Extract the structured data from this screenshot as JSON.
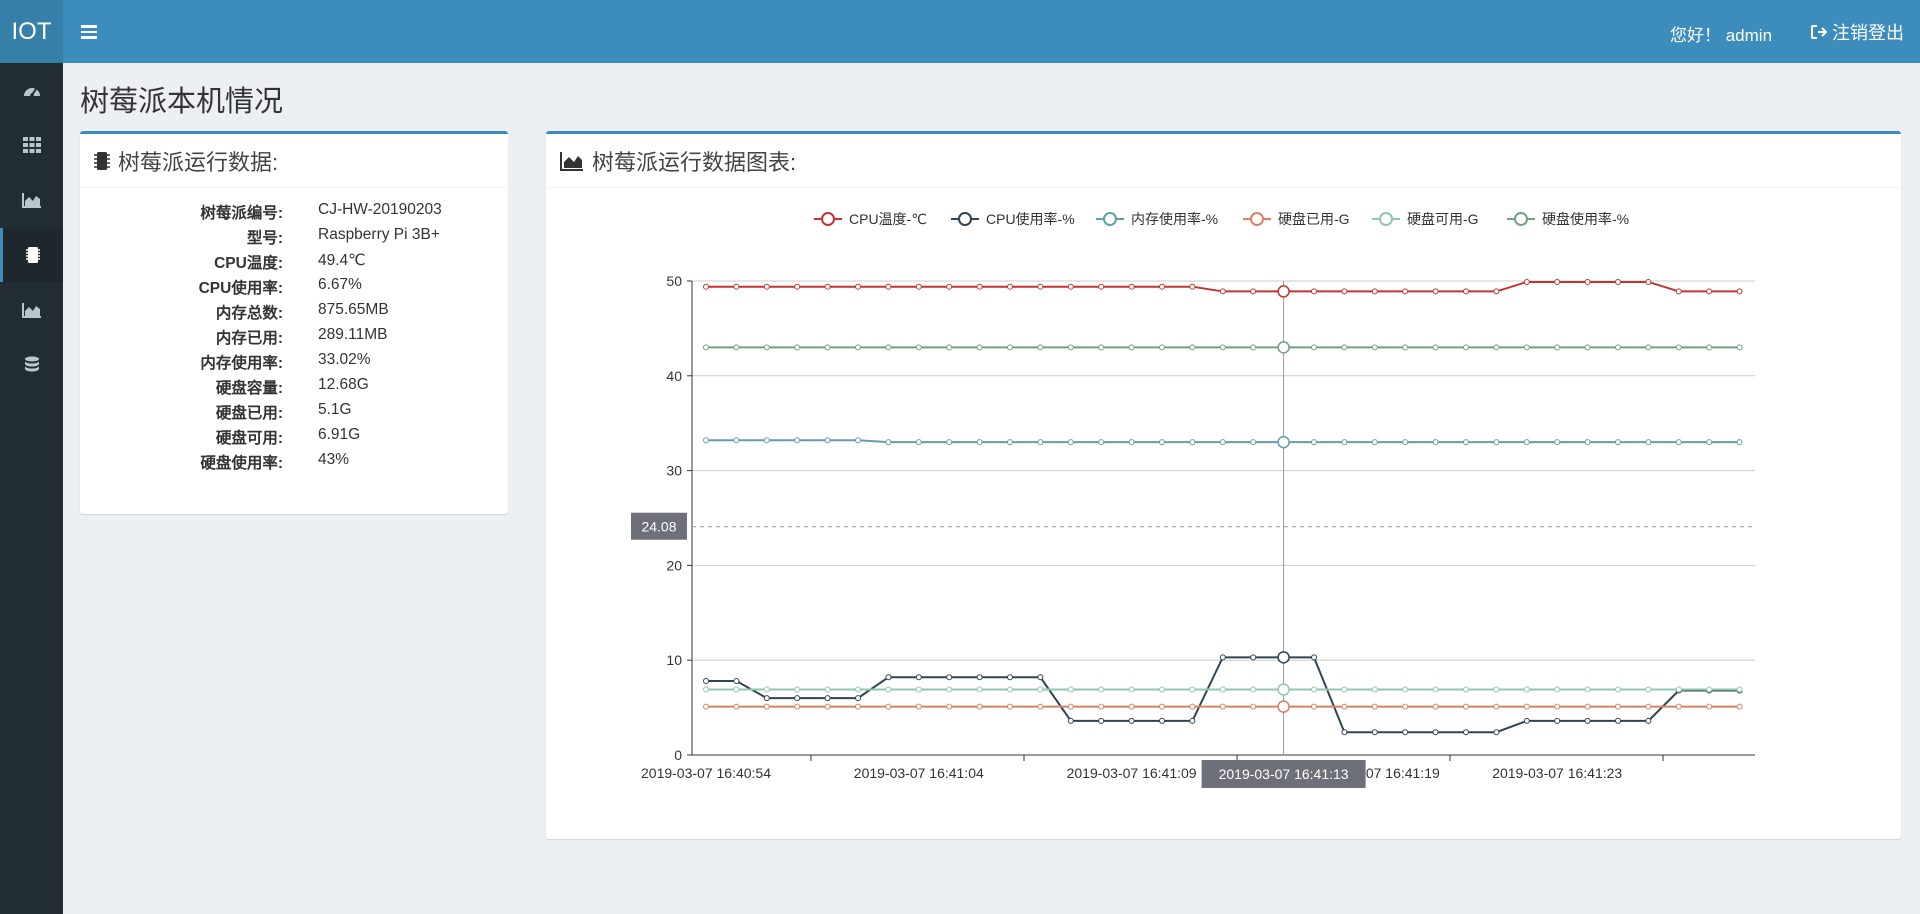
{
  "header": {
    "logo": "IOT",
    "greeting": "您好！ admin",
    "logout_label": "注销登出"
  },
  "sidebar": {
    "items": [
      {
        "icon": "dashboard-icon"
      },
      {
        "icon": "grid-icon"
      },
      {
        "icon": "area-chart-icon"
      },
      {
        "icon": "chip-icon",
        "active": true
      },
      {
        "icon": "area-chart-icon"
      },
      {
        "icon": "database-icon"
      }
    ]
  },
  "page": {
    "title": "树莓派本机情况"
  },
  "info_panel": {
    "title": "树莓派运行数据:",
    "rows": [
      {
        "label": "树莓派编号:",
        "value": "CJ-HW-20190203"
      },
      {
        "label": "型号:",
        "value": "Raspberry Pi 3B+"
      },
      {
        "label": "CPU温度:",
        "value": "49.4℃"
      },
      {
        "label": "CPU使用率:",
        "value": "6.67%"
      },
      {
        "label": "内存总数:",
        "value": "875.65MB"
      },
      {
        "label": "内存已用:",
        "value": "289.11MB"
      },
      {
        "label": "内存使用率:",
        "value": "33.02%"
      },
      {
        "label": "硬盘容量:",
        "value": "12.68G"
      },
      {
        "label": "硬盘已用:",
        "value": "5.1G"
      },
      {
        "label": "硬盘可用:",
        "value": "6.91G"
      },
      {
        "label": "硬盘使用率:",
        "value": "43%"
      }
    ]
  },
  "chart_panel": {
    "title": "树莓派运行数据图表:"
  },
  "chart_data": {
    "type": "line",
    "ylim": [
      0,
      50
    ],
    "yticks": [
      0,
      10,
      20,
      30,
      40,
      50
    ],
    "grid": true,
    "legend_position": "top-center",
    "x_tick_labels": [
      "2019-03-07 16:40:54",
      "2019-03-07 16:41:04",
      "2019-03-07 16:41:09",
      "2019-03-07 16:41:19",
      "2019-03-07 16:41:23"
    ],
    "x_tick_label_points": [
      0,
      7,
      14,
      22,
      28
    ],
    "crosshair": {
      "point_index": 19,
      "x_label": "2019-03-07 16:41:13",
      "y_label": "24.08",
      "y_value": 24.08
    },
    "points": 35,
    "series": [
      {
        "name": "CPU温度-℃",
        "color": "#c23531",
        "values": [
          49.4,
          49.4,
          49.4,
          49.4,
          49.4,
          49.4,
          49.4,
          49.4,
          49.4,
          49.4,
          49.4,
          49.4,
          49.4,
          49.4,
          49.4,
          49.4,
          49.4,
          48.9,
          48.9,
          48.9,
          48.9,
          48.9,
          48.9,
          48.9,
          48.9,
          48.9,
          48.9,
          49.9,
          49.9,
          49.9,
          49.9,
          49.9,
          48.9,
          48.9,
          48.9
        ]
      },
      {
        "name": "CPU使用率-%",
        "color": "#2f4554",
        "values": [
          7.8,
          7.8,
          6.0,
          6.0,
          6.0,
          6.0,
          8.2,
          8.2,
          8.2,
          8.2,
          8.2,
          8.2,
          3.6,
          3.6,
          3.6,
          3.6,
          3.6,
          10.3,
          10.3,
          10.3,
          10.3,
          2.4,
          2.4,
          2.4,
          2.4,
          2.4,
          2.4,
          3.6,
          3.6,
          3.6,
          3.6,
          3.6,
          6.8,
          6.8,
          6.8
        ]
      },
      {
        "name": "内存使用率-%",
        "color": "#61a0a8",
        "values": [
          33.2,
          33.2,
          33.2,
          33.2,
          33.2,
          33.2,
          33.0,
          33.0,
          33.0,
          33.0,
          33.0,
          33.0,
          33.0,
          33.0,
          33.0,
          33.0,
          33.0,
          33.0,
          33.0,
          33.0,
          33.0,
          33.0,
          33.0,
          33.0,
          33.0,
          33.0,
          33.0,
          33.0,
          33.0,
          33.0,
          33.0,
          33.0,
          33.0,
          33.0,
          33.0
        ]
      },
      {
        "name": "硬盘已用-G",
        "color": "#d48265",
        "values": [
          5.1,
          5.1,
          5.1,
          5.1,
          5.1,
          5.1,
          5.1,
          5.1,
          5.1,
          5.1,
          5.1,
          5.1,
          5.1,
          5.1,
          5.1,
          5.1,
          5.1,
          5.1,
          5.1,
          5.1,
          5.1,
          5.1,
          5.1,
          5.1,
          5.1,
          5.1,
          5.1,
          5.1,
          5.1,
          5.1,
          5.1,
          5.1,
          5.1,
          5.1,
          5.1
        ]
      },
      {
        "name": "硬盘可用-G",
        "color": "#91c7ae",
        "values": [
          6.91,
          6.91,
          6.91,
          6.91,
          6.91,
          6.91,
          6.91,
          6.91,
          6.91,
          6.91,
          6.91,
          6.91,
          6.91,
          6.91,
          6.91,
          6.91,
          6.91,
          6.91,
          6.91,
          6.91,
          6.91,
          6.91,
          6.91,
          6.91,
          6.91,
          6.91,
          6.91,
          6.91,
          6.91,
          6.91,
          6.91,
          6.91,
          6.91,
          6.91,
          6.91
        ]
      },
      {
        "name": "硬盘使用率-%",
        "color": "#749f83",
        "values": [
          43,
          43,
          43,
          43,
          43,
          43,
          43,
          43,
          43,
          43,
          43,
          43,
          43,
          43,
          43,
          43,
          43,
          43,
          43,
          43,
          43,
          43,
          43,
          43,
          43,
          43,
          43,
          43,
          43,
          43,
          43,
          43,
          43,
          43,
          43
        ]
      }
    ]
  }
}
